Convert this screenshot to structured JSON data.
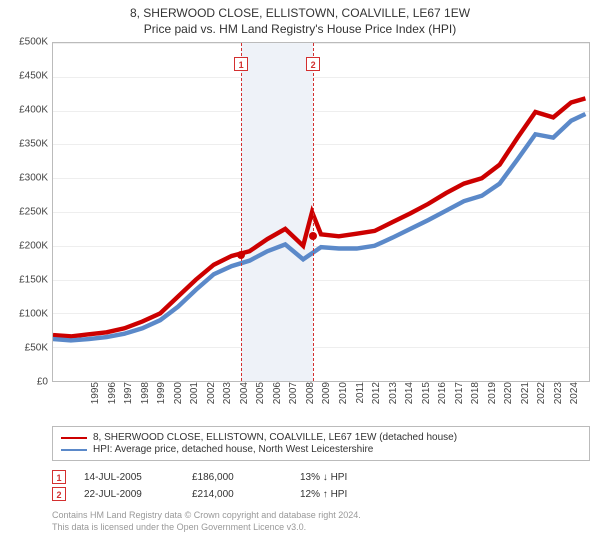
{
  "header": {
    "title": "8, SHERWOOD CLOSE, ELLISTOWN, COALVILLE, LE67 1EW",
    "subtitle": "Price paid vs. HM Land Registry's House Price Index (HPI)"
  },
  "chart": {
    "type": "line",
    "background_color": "#ffffff",
    "grid_color": "#eeeeee",
    "border_color": "#bbbbbb",
    "band_color": "#eef2f8",
    "y": {
      "min": 0,
      "max": 500000,
      "tick_step": 50000,
      "ticks": [
        "£0",
        "£50K",
        "£100K",
        "£150K",
        "£200K",
        "£250K",
        "£300K",
        "£350K",
        "£400K",
        "£450K",
        "£500K"
      ],
      "label_fontsize": 10,
      "label_color": "#444444"
    },
    "x": {
      "years": [
        1995,
        1996,
        1997,
        1998,
        1999,
        2000,
        2001,
        2002,
        2003,
        2004,
        2005,
        2006,
        2007,
        2008,
        2009,
        2010,
        2011,
        2012,
        2013,
        2014,
        2015,
        2016,
        2017,
        2018,
        2019,
        2020,
        2021,
        2022,
        2023,
        2024
      ],
      "label_fontsize": 10,
      "label_color": "#444444"
    },
    "band": {
      "from_year": 2005.53,
      "to_year": 2009.56
    },
    "callouts": [
      {
        "n": "1",
        "year": 2005.53,
        "price": 186000
      },
      {
        "n": "2",
        "year": 2009.56,
        "price": 214000
      }
    ],
    "series": [
      {
        "name": "property",
        "color": "#cc0000",
        "line_width": 1.5,
        "label": "8, SHERWOOD CLOSE, ELLISTOWN, COALVILLE, LE67 1EW (detached house)",
        "points": [
          [
            1995,
            68000
          ],
          [
            1996,
            66000
          ],
          [
            1997,
            69000
          ],
          [
            1998,
            72000
          ],
          [
            1999,
            78000
          ],
          [
            2000,
            88000
          ],
          [
            2001,
            100000
          ],
          [
            2002,
            125000
          ],
          [
            2003,
            150000
          ],
          [
            2004,
            172000
          ],
          [
            2005,
            185000
          ],
          [
            2006,
            192000
          ],
          [
            2007,
            210000
          ],
          [
            2008,
            225000
          ],
          [
            2009,
            200000
          ],
          [
            2009.5,
            250000
          ],
          [
            2010,
            217000
          ],
          [
            2011,
            214000
          ],
          [
            2012,
            218000
          ],
          [
            2013,
            222000
          ],
          [
            2014,
            235000
          ],
          [
            2015,
            248000
          ],
          [
            2016,
            262000
          ],
          [
            2017,
            278000
          ],
          [
            2018,
            292000
          ],
          [
            2019,
            300000
          ],
          [
            2020,
            320000
          ],
          [
            2021,
            360000
          ],
          [
            2022,
            398000
          ],
          [
            2023,
            390000
          ],
          [
            2024,
            412000
          ],
          [
            2024.8,
            418000
          ]
        ]
      },
      {
        "name": "hpi",
        "color": "#5b89c9",
        "line_width": 1.5,
        "label": "HPI: Average price, detached house, North West Leicestershire",
        "points": [
          [
            1995,
            62000
          ],
          [
            1996,
            60000
          ],
          [
            1997,
            62000
          ],
          [
            1998,
            65000
          ],
          [
            1999,
            70000
          ],
          [
            2000,
            78000
          ],
          [
            2001,
            90000
          ],
          [
            2002,
            110000
          ],
          [
            2003,
            135000
          ],
          [
            2004,
            158000
          ],
          [
            2005,
            170000
          ],
          [
            2006,
            178000
          ],
          [
            2007,
            192000
          ],
          [
            2008,
            202000
          ],
          [
            2009,
            180000
          ],
          [
            2010,
            198000
          ],
          [
            2011,
            196000
          ],
          [
            2012,
            196000
          ],
          [
            2013,
            200000
          ],
          [
            2014,
            212000
          ],
          [
            2015,
            225000
          ],
          [
            2016,
            238000
          ],
          [
            2017,
            252000
          ],
          [
            2018,
            266000
          ],
          [
            2019,
            274000
          ],
          [
            2020,
            292000
          ],
          [
            2021,
            328000
          ],
          [
            2022,
            365000
          ],
          [
            2023,
            360000
          ],
          [
            2024,
            385000
          ],
          [
            2024.8,
            395000
          ]
        ]
      }
    ],
    "event_dot_color": "#cc0000",
    "callout_border": "#d32f2f"
  },
  "legend": {
    "rows": [
      {
        "color": "#cc0000",
        "label": "8, SHERWOOD CLOSE, ELLISTOWN, COALVILLE, LE67 1EW (detached house)"
      },
      {
        "color": "#5b89c9",
        "label": "HPI: Average price, detached house, North West Leicestershire"
      }
    ]
  },
  "events": [
    {
      "n": "1",
      "date": "14-JUL-2005",
      "price": "£186,000",
      "delta": "13%",
      "arrow": "↓",
      "vs": "HPI"
    },
    {
      "n": "2",
      "date": "22-JUL-2009",
      "price": "£214,000",
      "delta": "12%",
      "arrow": "↑",
      "vs": "HPI"
    }
  ],
  "footer": {
    "line1": "Contains HM Land Registry data © Crown copyright and database right 2024.",
    "line2": "This data is licensed under the Open Government Licence v3.0."
  }
}
